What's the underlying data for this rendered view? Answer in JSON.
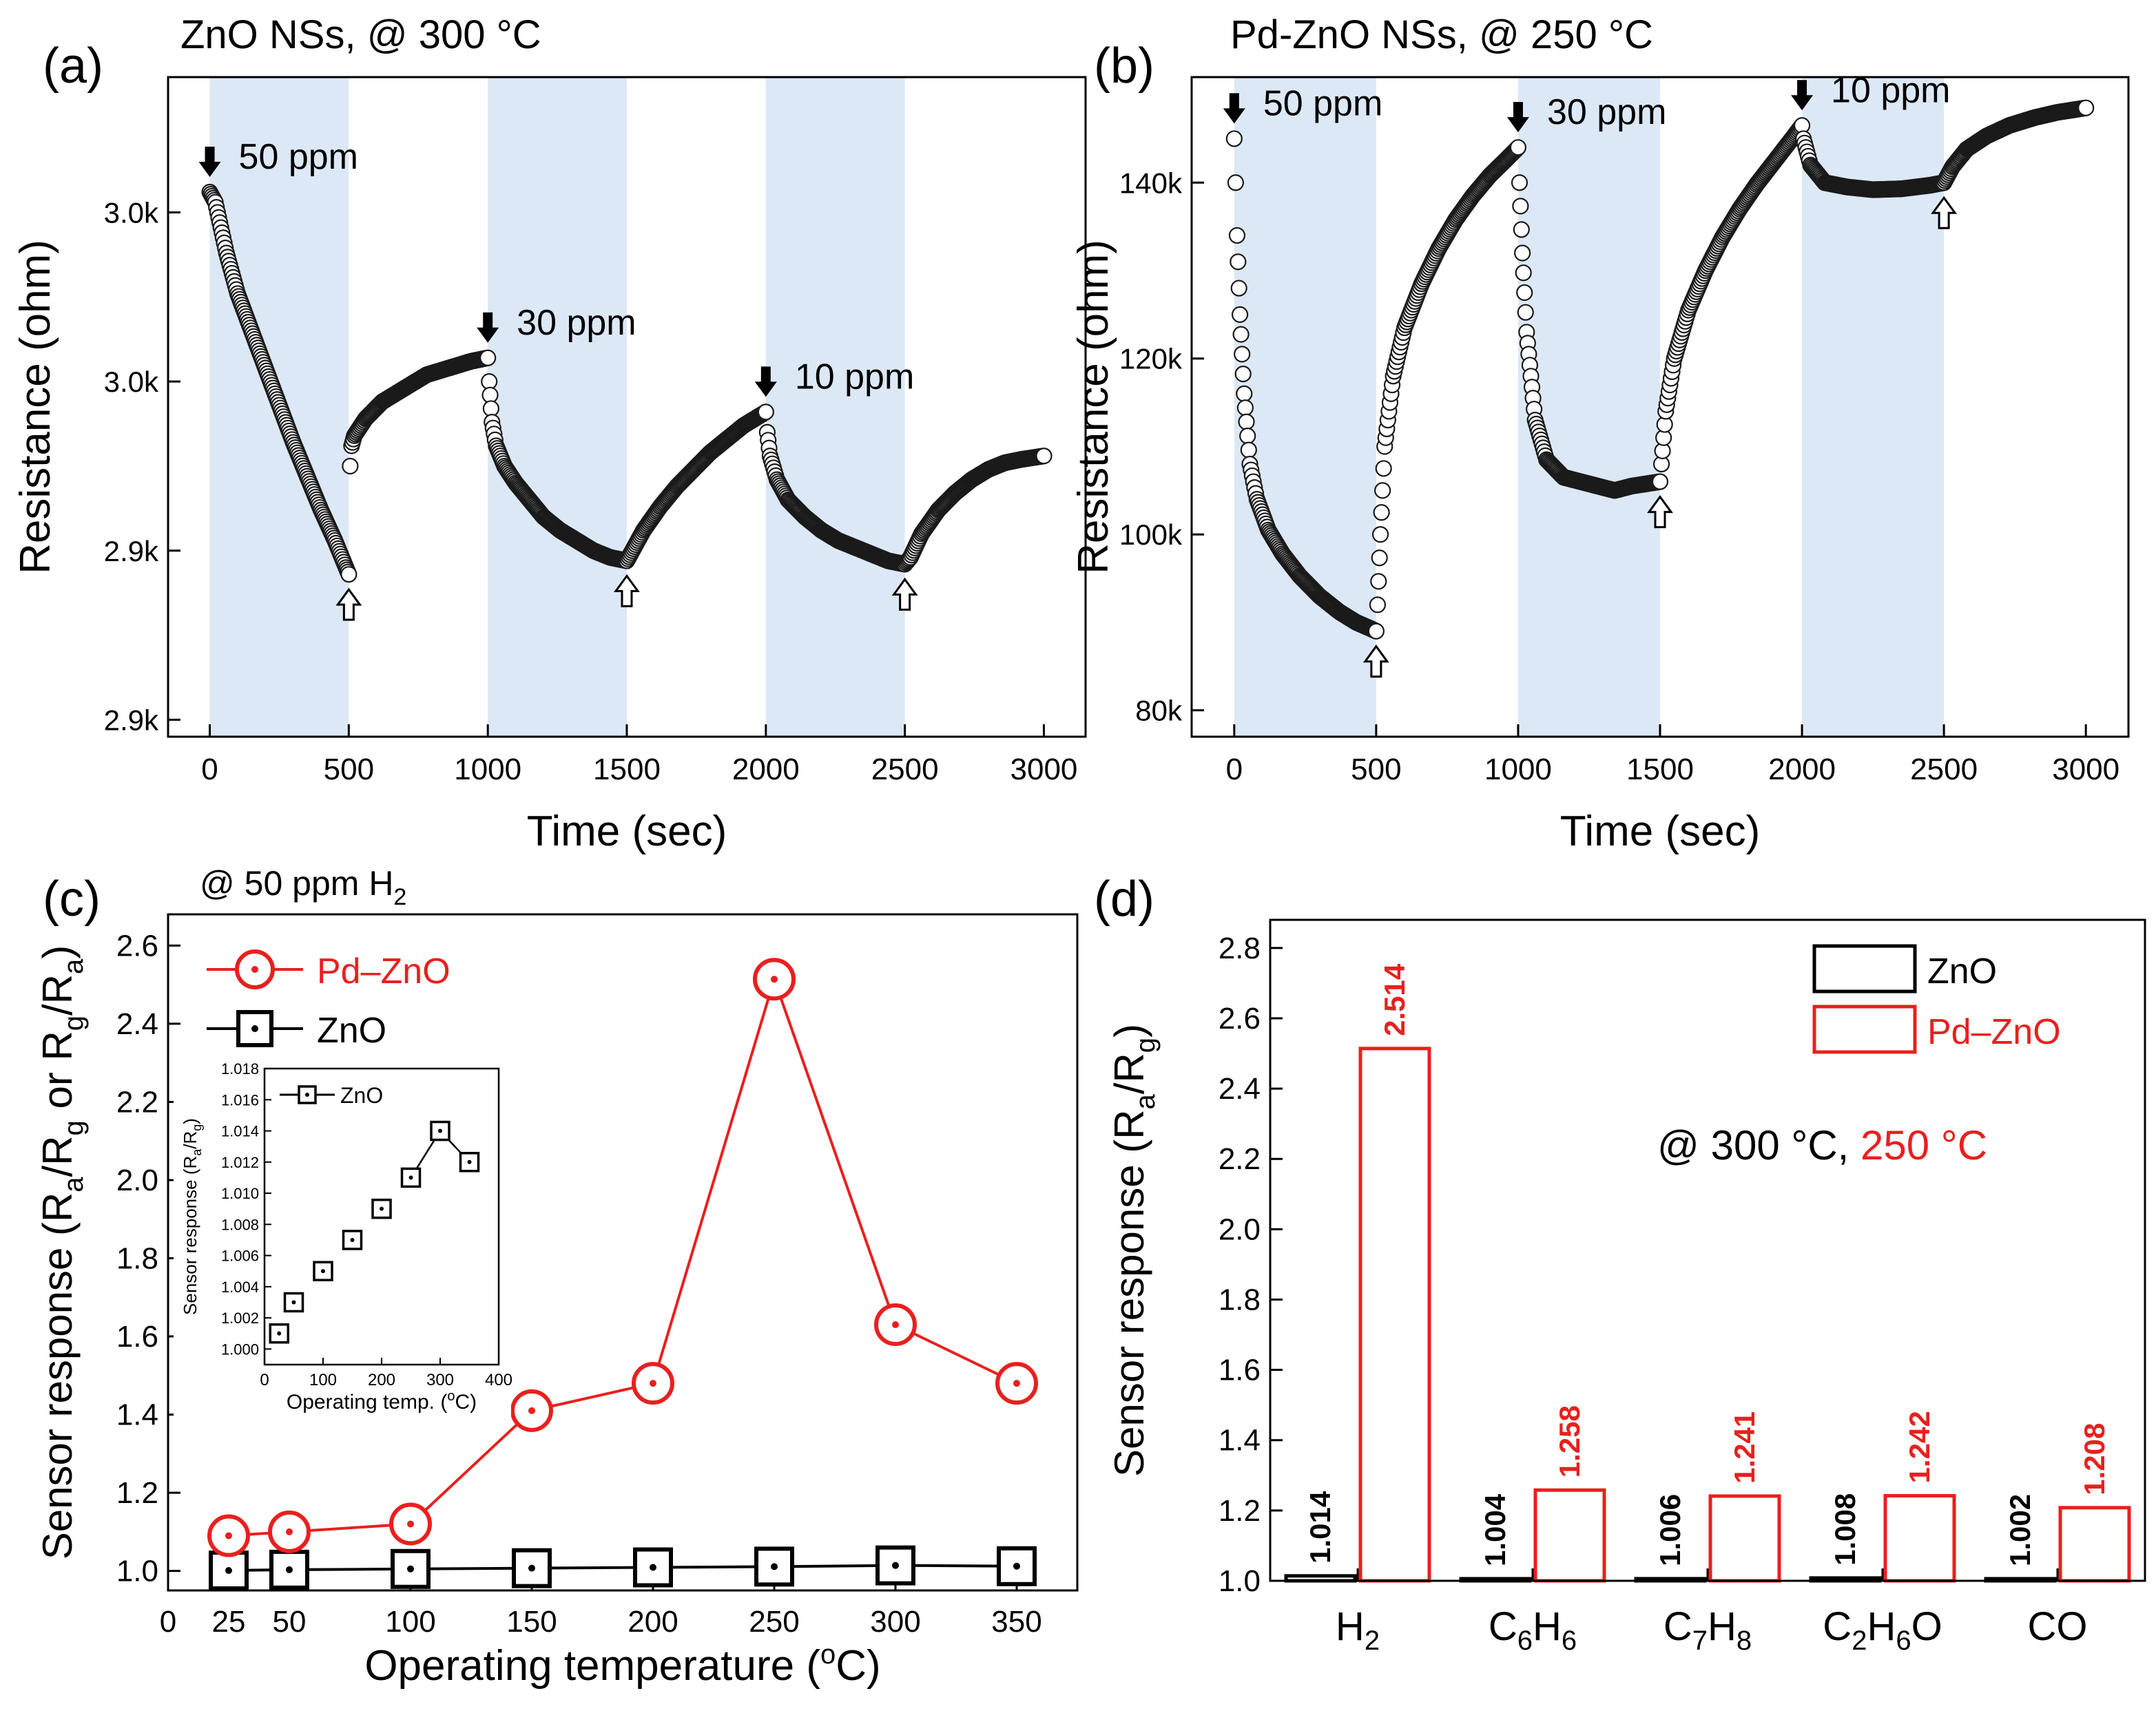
{
  "colors": {
    "zno": "#000000",
    "pdzno": "#e8201e",
    "shade": "#dce8f6"
  },
  "chart_data": [
    {
      "panel": "(a)",
      "type": "line",
      "title": "ZnO NSs, @ 300 °C",
      "xlabel": "Time (sec)",
      "ylabel": "Resistance (ohm)",
      "xlim": [
        -150,
        3150
      ],
      "ylim": [
        2865,
        3060
      ],
      "xticks": [
        0,
        500,
        1000,
        1500,
        2000,
        2500,
        3000
      ],
      "yticks": [
        {
          "value": 2870,
          "label": "2.9k"
        },
        {
          "value": 2920,
          "label": "2.9k"
        },
        {
          "value": 2970,
          "label": "3.0k"
        },
        {
          "value": 3020,
          "label": "3.0k"
        }
      ],
      "gas_on_intervals": [
        [
          0,
          500
        ],
        [
          1000,
          1500
        ],
        [
          2000,
          2500
        ]
      ],
      "series": [
        {
          "name": "ZnO NSs",
          "marker": "open-circle",
          "points": [
            [
              0,
              3026
            ],
            [
              20,
              3023
            ],
            [
              60,
              3008
            ],
            [
              100,
              2996
            ],
            [
              150,
              2985
            ],
            [
              200,
              2974
            ],
            [
              250,
              2963
            ],
            [
              300,
              2952
            ],
            [
              350,
              2942
            ],
            [
              400,
              2932
            ],
            [
              450,
              2923
            ],
            [
              490,
              2915
            ],
            [
              500,
              2913
            ],
            [
              505,
              2945
            ],
            [
              510,
              2951
            ],
            [
              520,
              2954
            ],
            [
              560,
              2959
            ],
            [
              620,
              2964
            ],
            [
              700,
              2968
            ],
            [
              780,
              2972
            ],
            [
              860,
              2974
            ],
            [
              940,
              2976
            ],
            [
              1000,
              2977
            ],
            [
              1005,
              2970
            ],
            [
              1015,
              2958
            ],
            [
              1030,
              2951
            ],
            [
              1060,
              2945
            ],
            [
              1100,
              2940
            ],
            [
              1150,
              2935
            ],
            [
              1200,
              2930
            ],
            [
              1260,
              2926
            ],
            [
              1320,
              2923
            ],
            [
              1380,
              2920
            ],
            [
              1440,
              2918
            ],
            [
              1500,
              2917
            ],
            [
              1520,
              2920
            ],
            [
              1560,
              2926
            ],
            [
              1620,
              2933
            ],
            [
              1680,
              2939
            ],
            [
              1740,
              2944
            ],
            [
              1800,
              2949
            ],
            [
              1860,
              2953
            ],
            [
              1920,
              2957
            ],
            [
              2000,
              2961
            ],
            [
              2005,
              2955
            ],
            [
              2015,
              2948
            ],
            [
              2040,
              2941
            ],
            [
              2080,
              2935
            ],
            [
              2140,
              2930
            ],
            [
              2200,
              2926
            ],
            [
              2260,
              2923
            ],
            [
              2320,
              2921
            ],
            [
              2380,
              2919
            ],
            [
              2440,
              2917
            ],
            [
              2500,
              2916
            ],
            [
              2520,
              2918
            ],
            [
              2560,
              2925
            ],
            [
              2620,
              2932
            ],
            [
              2680,
              2937
            ],
            [
              2740,
              2941
            ],
            [
              2800,
              2944
            ],
            [
              2860,
              2946
            ],
            [
              2920,
              2947
            ],
            [
              3000,
              2948
            ]
          ]
        }
      ],
      "annotations": [
        {
          "text": "50 ppm",
          "x": 0,
          "y": 3026,
          "arrow": "gas-on"
        },
        {
          "text": "30 ppm",
          "x": 1000,
          "y": 2977,
          "arrow": "gas-on"
        },
        {
          "text": "10 ppm",
          "x": 2000,
          "y": 2961,
          "arrow": "gas-on"
        },
        {
          "text": "",
          "x": 500,
          "y": 2913,
          "arrow": "gas-off"
        },
        {
          "text": "",
          "x": 1500,
          "y": 2917,
          "arrow": "gas-off"
        },
        {
          "text": "",
          "x": 2500,
          "y": 2916,
          "arrow": "gas-off"
        }
      ]
    },
    {
      "panel": "(b)",
      "type": "line",
      "title": "Pd-ZnO NSs, @ 250 °C",
      "xlabel": "Time (sec)",
      "ylabel": "Resistance (ohm)",
      "xlim": [
        -150,
        3150
      ],
      "ylim": [
        77000,
        152000
      ],
      "xticks": [
        0,
        500,
        1000,
        1500,
        2000,
        2500,
        3000
      ],
      "yticks": [
        {
          "value": 80000,
          "label": "80k"
        },
        {
          "value": 100000,
          "label": "100k"
        },
        {
          "value": 120000,
          "label": "120k"
        },
        {
          "value": 140000,
          "label": "140k"
        }
      ],
      "gas_on_intervals": [
        [
          0,
          500
        ],
        [
          1000,
          1500
        ],
        [
          2000,
          2500
        ]
      ],
      "series": [
        {
          "name": "Pd-ZnO NSs",
          "marker": "open-circle",
          "points": [
            [
              0,
              145000
            ],
            [
              5,
              140000
            ],
            [
              10,
              134000
            ],
            [
              20,
              125000
            ],
            [
              35,
              116000
            ],
            [
              55,
              108000
            ],
            [
              80,
              104000
            ],
            [
              120,
              100500
            ],
            [
              170,
              97800
            ],
            [
              230,
              95300
            ],
            [
              300,
              93000
            ],
            [
              370,
              91200
            ],
            [
              430,
              90000
            ],
            [
              480,
              89300
            ],
            [
              500,
              89000
            ],
            [
              505,
              92000
            ],
            [
              515,
              100000
            ],
            [
              530,
              110000
            ],
            [
              560,
              118000
            ],
            [
              600,
              123500
            ],
            [
              660,
              128500
            ],
            [
              720,
              132500
            ],
            [
              780,
              135800
            ],
            [
              840,
              138500
            ],
            [
              900,
              140800
            ],
            [
              960,
              142700
            ],
            [
              1000,
              144000
            ],
            [
              1005,
              140000
            ],
            [
              1015,
              132000
            ],
            [
              1030,
              123000
            ],
            [
              1060,
              113000
            ],
            [
              1100,
              108500
            ],
            [
              1160,
              106500
            ],
            [
              1220,
              106000
            ],
            [
              1280,
              105500
            ],
            [
              1340,
              105000
            ],
            [
              1400,
              105500
            ],
            [
              1460,
              105800
            ],
            [
              1500,
              106000
            ],
            [
              1505,
              108000
            ],
            [
              1520,
              114000
            ],
            [
              1550,
              120000
            ],
            [
              1600,
              125500
            ],
            [
              1660,
              130000
            ],
            [
              1720,
              133800
            ],
            [
              1780,
              137000
            ],
            [
              1840,
              139800
            ],
            [
              1900,
              142300
            ],
            [
              1960,
              144800
            ],
            [
              2000,
              146500
            ],
            [
              2005,
              145000
            ],
            [
              2030,
              142000
            ],
            [
              2080,
              140000
            ],
            [
              2160,
              139500
            ],
            [
              2250,
              139200
            ],
            [
              2350,
              139300
            ],
            [
              2450,
              139700
            ],
            [
              2500,
              140000
            ],
            [
              2530,
              141800
            ],
            [
              2580,
              143800
            ],
            [
              2650,
              145300
            ],
            [
              2730,
              146500
            ],
            [
              2820,
              147400
            ],
            [
              2900,
              148000
            ],
            [
              3000,
              148500
            ]
          ]
        }
      ],
      "annotations": [
        {
          "text": "50 ppm",
          "x": 0,
          "y": 145000,
          "arrow": "gas-on"
        },
        {
          "text": "30 ppm",
          "x": 1000,
          "y": 144000,
          "arrow": "gas-on"
        },
        {
          "text": "10 ppm",
          "x": 2000,
          "y": 146500,
          "arrow": "gas-on"
        },
        {
          "text": "",
          "x": 500,
          "y": 89000,
          "arrow": "gas-off"
        },
        {
          "text": "",
          "x": 1500,
          "y": 106000,
          "arrow": "gas-off"
        },
        {
          "text": "",
          "x": 2500,
          "y": 140000,
          "arrow": "gas-off"
        }
      ]
    },
    {
      "panel": "(c)",
      "type": "line",
      "title": "@ 50 ppm H",
      "title_sub": "2",
      "xlabel": "Operating temperature (",
      "xlabel_sup": "o",
      "xlabel_end": "C)",
      "ylabel": "Sensor response (R",
      "ylabel_sub1": "a",
      "ylabel_mid1": "/R",
      "ylabel_sub2": "g",
      "ylabel_mid2": " or R",
      "ylabel_sub3": "g",
      "ylabel_mid3": "/R",
      "ylabel_sub4": "a",
      "ylabel_end": ")",
      "xlim": [
        0,
        375
      ],
      "ylim": [
        0.95,
        2.68
      ],
      "xticks": [
        0,
        25,
        50,
        100,
        150,
        200,
        250,
        300,
        350
      ],
      "yticks": [
        1.0,
        1.2,
        1.4,
        1.6,
        1.8,
        2.0,
        2.2,
        2.4,
        2.6
      ],
      "series": [
        {
          "name": "Pd–ZnO",
          "marker": "circle-dot",
          "x": [
            25,
            50,
            100,
            150,
            200,
            250,
            300,
            350
          ],
          "values": [
            1.09,
            1.1,
            1.12,
            1.41,
            1.48,
            2.514,
            1.63,
            1.48
          ]
        },
        {
          "name": "ZnO",
          "marker": "square-dot",
          "x": [
            25,
            50,
            100,
            150,
            200,
            250,
            300,
            350
          ],
          "values": [
            1.001,
            1.003,
            1.005,
            1.007,
            1.009,
            1.011,
            1.014,
            1.012
          ]
        }
      ],
      "inset": {
        "type": "line",
        "legend": "ZnO",
        "xlabel": "Operating temp. (",
        "xlabel_sup": "o",
        "xlabel_end": "C)",
        "ylabel": "Sensor response (R",
        "ylabel_sub1": "a",
        "ylabel_mid": "/R",
        "ylabel_sub2": "g",
        "ylabel_end": ")",
        "xlim": [
          0,
          400
        ],
        "ylim": [
          0.999,
          1.018
        ],
        "xticks": [
          0,
          100,
          200,
          300,
          400
        ],
        "yticks": [
          1.0,
          1.002,
          1.004,
          1.006,
          1.008,
          1.01,
          1.012,
          1.014,
          1.016,
          1.018
        ],
        "ytick_labels": [
          "1.000",
          "1.002",
          "1.004",
          "1.006",
          "1.008",
          "1.010",
          "1.012",
          "1.014",
          "1.016",
          "1.018"
        ],
        "x": [
          25,
          50,
          100,
          150,
          200,
          250,
          300,
          350
        ],
        "values": [
          1.001,
          1.003,
          1.005,
          1.007,
          1.009,
          1.011,
          1.014,
          1.012
        ]
      }
    },
    {
      "panel": "(d)",
      "type": "bar",
      "ylabel": "Sensor response (R",
      "ylabel_sub1": "a",
      "ylabel_mid": "/R",
      "ylabel_sub2": "g",
      "ylabel_end": ")",
      "categories": [
        {
          "base": "H",
          "parts": [
            [
              "H",
              ""
            ],
            [
              "2",
              "sub"
            ]
          ]
        },
        {
          "base": "C6H6",
          "parts": [
            [
              "C",
              ""
            ],
            [
              "6",
              "sub"
            ],
            [
              "H",
              ""
            ],
            [
              "6",
              "sub"
            ]
          ]
        },
        {
          "base": "C7H8",
          "parts": [
            [
              "C",
              ""
            ],
            [
              "7",
              "sub"
            ],
            [
              "H",
              ""
            ],
            [
              "8",
              "sub"
            ]
          ]
        },
        {
          "base": "C2H6O",
          "parts": [
            [
              "C",
              ""
            ],
            [
              "2",
              "sub"
            ],
            [
              "H",
              ""
            ],
            [
              "6",
              "sub"
            ],
            [
              "O",
              ""
            ]
          ]
        },
        {
          "base": "CO",
          "parts": [
            [
              "CO",
              ""
            ]
          ]
        }
      ],
      "ylim": [
        1.0,
        2.88
      ],
      "yticks": [
        1.0,
        1.2,
        1.4,
        1.6,
        1.8,
        2.0,
        2.2,
        2.4,
        2.6,
        2.8
      ],
      "series": [
        {
          "name": "ZnO",
          "values": [
            1.014,
            1.004,
            1.006,
            1.008,
            1.002
          ],
          "labels": [
            "1.014",
            "1.004",
            "1.006",
            "1.008",
            "1.002"
          ]
        },
        {
          "name": "Pd–ZnO",
          "values": [
            2.514,
            1.258,
            1.241,
            1.242,
            1.208
          ],
          "labels": [
            "2.514",
            "1.258",
            "1.241",
            "1.242",
            "1.208"
          ]
        }
      ],
      "annotation": {
        "prefix": "@ 300 °C, ",
        "highlight": "250 °C"
      }
    }
  ]
}
